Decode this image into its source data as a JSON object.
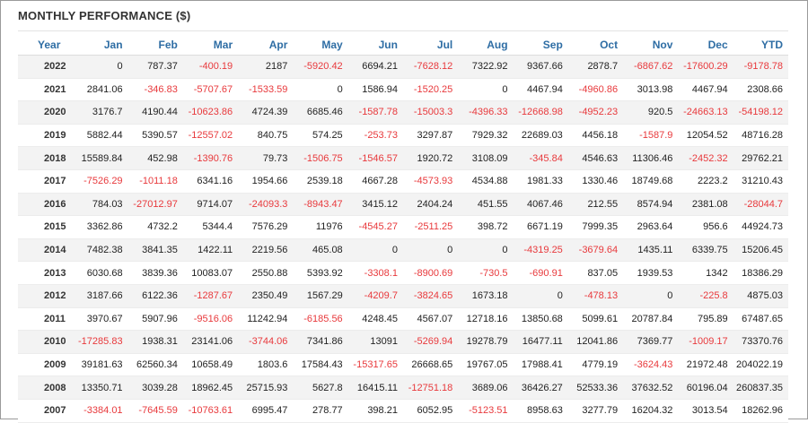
{
  "title": "MONTHLY PERFORMANCE ($)",
  "colors": {
    "header": "#2e6da4",
    "negative": "#e8393c",
    "stripe": "#f3f3f3"
  },
  "columns": [
    "Year",
    "Jan",
    "Feb",
    "Mar",
    "Apr",
    "May",
    "Jun",
    "Jul",
    "Aug",
    "Sep",
    "Oct",
    "Nov",
    "Dec",
    "YTD"
  ],
  "rows": [
    [
      "2022",
      "0",
      "787.37",
      "-400.19",
      "2187",
      "-5920.42",
      "6694.21",
      "-7628.12",
      "7322.92",
      "9367.66",
      "2878.7",
      "-6867.62",
      "-17600.29",
      "-9178.78"
    ],
    [
      "2021",
      "2841.06",
      "-346.83",
      "-5707.67",
      "-1533.59",
      "0",
      "1586.94",
      "-1520.25",
      "0",
      "4467.94",
      "-4960.86",
      "3013.98",
      "4467.94",
      "2308.66"
    ],
    [
      "2020",
      "3176.7",
      "4190.44",
      "-10623.86",
      "4724.39",
      "6685.46",
      "-1587.78",
      "-15003.3",
      "-4396.33",
      "-12668.98",
      "-4952.23",
      "920.5",
      "-24663.13",
      "-54198.12"
    ],
    [
      "2019",
      "5882.44",
      "5390.57",
      "-12557.02",
      "840.75",
      "574.25",
      "-253.73",
      "3297.87",
      "7929.32",
      "22689.03",
      "4456.18",
      "-1587.9",
      "12054.52",
      "48716.28"
    ],
    [
      "2018",
      "15589.84",
      "452.98",
      "-1390.76",
      "79.73",
      "-1506.75",
      "-1546.57",
      "1920.72",
      "3108.09",
      "-345.84",
      "4546.63",
      "11306.46",
      "-2452.32",
      "29762.21"
    ],
    [
      "2017",
      "-7526.29",
      "-1011.18",
      "6341.16",
      "1954.66",
      "2539.18",
      "4667.28",
      "-4573.93",
      "4534.88",
      "1981.33",
      "1330.46",
      "18749.68",
      "2223.2",
      "31210.43"
    ],
    [
      "2016",
      "784.03",
      "-27012.97",
      "9714.07",
      "-24093.3",
      "-8943.47",
      "3415.12",
      "2404.24",
      "451.55",
      "4067.46",
      "212.55",
      "8574.94",
      "2381.08",
      "-28044.7"
    ],
    [
      "2015",
      "3362.86",
      "4732.2",
      "5344.4",
      "7576.29",
      "11976",
      "-4545.27",
      "-2511.25",
      "398.72",
      "6671.19",
      "7999.35",
      "2963.64",
      "956.6",
      "44924.73"
    ],
    [
      "2014",
      "7482.38",
      "3841.35",
      "1422.11",
      "2219.56",
      "465.08",
      "0",
      "0",
      "0",
      "-4319.25",
      "-3679.64",
      "1435.11",
      "6339.75",
      "15206.45"
    ],
    [
      "2013",
      "6030.68",
      "3839.36",
      "10083.07",
      "2550.88",
      "5393.92",
      "-3308.1",
      "-8900.69",
      "-730.5",
      "-690.91",
      "837.05",
      "1939.53",
      "1342",
      "18386.29"
    ],
    [
      "2012",
      "3187.66",
      "6122.36",
      "-1287.67",
      "2350.49",
      "1567.29",
      "-4209.7",
      "-3824.65",
      "1673.18",
      "0",
      "-478.13",
      "0",
      "-225.8",
      "4875.03"
    ],
    [
      "2011",
      "3970.67",
      "5907.96",
      "-9516.06",
      "11242.94",
      "-6185.56",
      "4248.45",
      "4567.07",
      "12718.16",
      "13850.68",
      "5099.61",
      "20787.84",
      "795.89",
      "67487.65"
    ],
    [
      "2010",
      "-17285.83",
      "1938.31",
      "23141.06",
      "-3744.06",
      "7341.86",
      "13091",
      "-5269.94",
      "19278.79",
      "16477.11",
      "12041.86",
      "7369.77",
      "-1009.17",
      "73370.76"
    ],
    [
      "2009",
      "39181.63",
      "62560.34",
      "10658.49",
      "1803.6",
      "17584.43",
      "-15317.65",
      "26668.65",
      "19767.05",
      "17988.41",
      "4779.19",
      "-3624.43",
      "21972.48",
      "204022.19"
    ],
    [
      "2008",
      "13350.71",
      "3039.28",
      "18962.45",
      "25715.93",
      "5627.8",
      "16415.11",
      "-12751.18",
      "3689.06",
      "36426.27",
      "52533.36",
      "37632.52",
      "60196.04",
      "260837.35"
    ],
    [
      "2007",
      "-3384.01",
      "-7645.59",
      "-10763.61",
      "6995.47",
      "278.77",
      "398.21",
      "6052.95",
      "-5123.51",
      "8958.63",
      "3277.79",
      "16204.32",
      "3013.54",
      "18262.96"
    ]
  ]
}
